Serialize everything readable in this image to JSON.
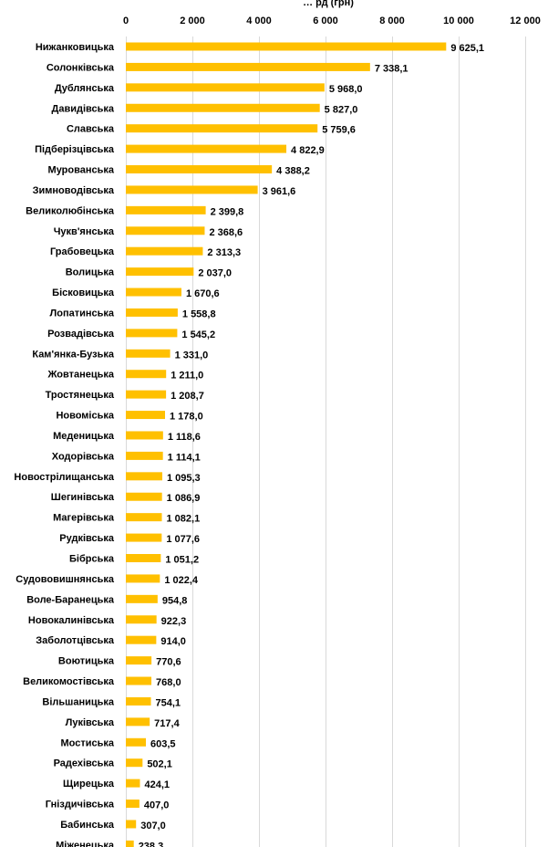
{
  "chart_data": {
    "type": "bar",
    "orientation": "horizontal",
    "title": "… рд (грн)",
    "xlim": [
      0,
      12000
    ],
    "x_ticks": [
      "0",
      "2 000",
      "4 000",
      "6 000",
      "8 000",
      "10 000",
      "12 000"
    ],
    "x_tick_values": [
      0,
      2000,
      4000,
      6000,
      8000,
      10000,
      12000
    ],
    "grid": "vertical",
    "bar_color": "#FFC000",
    "categories": [
      "Нижанковицька",
      "Солонківська",
      "Дублянська",
      "Давидівська",
      "Славська",
      "Підберізцівська",
      "Мурованська",
      "Зимноводівська",
      "Великолюбінська",
      "Чукв'янська",
      "Грабовецька",
      "Волицька",
      "Бісковицька",
      "Лопатинська",
      "Розвадівська",
      "Кам'янка-Бузька",
      "Жовтанецька",
      "Тростянецька",
      "Новоміська",
      "Меденицька",
      "Ходорівська",
      "Новострілищанська",
      "Шегинівська",
      "Магерівська",
      "Рудківська",
      "Бібрська",
      "Судововишнянська",
      "Воле-Баранецька",
      "Новокалинівська",
      "Заболотцівська",
      "Воютицька",
      "Великомостівська",
      "Вільшаницька",
      "Луківська",
      "Мостиська",
      "Радехівська",
      "Щирецька",
      "Гніздичівська",
      "Бабинська",
      "Міженецька"
    ],
    "values": [
      9625.1,
      7338.1,
      5968.0,
      5827.0,
      5759.6,
      4822.9,
      4388.2,
      3961.6,
      2399.8,
      2368.6,
      2313.3,
      2037.0,
      1670.6,
      1558.8,
      1545.2,
      1331.0,
      1211.0,
      1208.7,
      1178.0,
      1118.6,
      1114.1,
      1095.3,
      1086.9,
      1082.1,
      1077.6,
      1051.2,
      1022.4,
      954.8,
      922.3,
      914.0,
      770.6,
      768.0,
      754.1,
      717.4,
      603.5,
      502.1,
      424.1,
      407.0,
      307.0,
      238.3
    ],
    "value_labels": [
      "9 625,1",
      "7 338,1",
      "5 968,0",
      "5 827,0",
      "5 759,6",
      "4 822,9",
      "4 388,2",
      "3 961,6",
      "2 399,8",
      "2 368,6",
      "2 313,3",
      "2 037,0",
      "1 670,6",
      "1 558,8",
      "1 545,2",
      "1 331,0",
      "1 211,0",
      "1 208,7",
      "1 178,0",
      "1 118,6",
      "1 114,1",
      "1 095,3",
      "1 086,9",
      "1 082,1",
      "1 077,6",
      "1 051,2",
      "1 022,4",
      "954,8",
      "922,3",
      "914,0",
      "770,6",
      "768,0",
      "754,1",
      "717,4",
      "603,5",
      "502,1",
      "424,1",
      "407,0",
      "307,0",
      "238,3"
    ]
  }
}
